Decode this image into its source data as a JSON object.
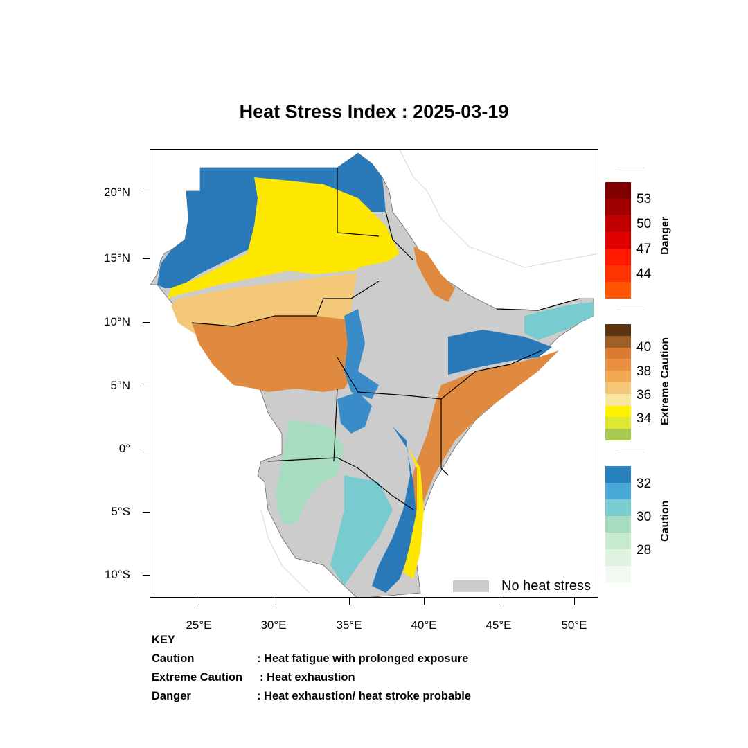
{
  "title": "Heat Stress Index : 2025-03-19",
  "axes": {
    "lat_labels": [
      "20°N",
      "15°N",
      "10°N",
      "5°N",
      "0°",
      "5°S",
      "10°S"
    ],
    "lon_labels": [
      "25°E",
      "30°E",
      "35°E",
      "40°E",
      "45°E",
      "50°E"
    ]
  },
  "map_legend": {
    "no_heat_stress_label": "No heat stress",
    "no_heat_stress_color": "#cccccc"
  },
  "colorbars": {
    "danger": {
      "title": "Danger",
      "colors": [
        "#800000",
        "#a00000",
        "#c00000",
        "#e00000",
        "#ff1a00",
        "#ff3300",
        "#ff5500"
      ],
      "ticks": [
        "53",
        "50",
        "47",
        "44"
      ]
    },
    "extreme_caution": {
      "title": "Extreme Caution",
      "colors": [
        "#5c3310",
        "#9c6028",
        "#d97b30",
        "#e8903f",
        "#f0a850",
        "#f3c878",
        "#f8e6a0",
        "#fff200",
        "#dde830",
        "#a8c850"
      ],
      "ticks": [
        "40",
        "38",
        "36",
        "34"
      ]
    },
    "caution": {
      "title": "Caution",
      "colors": [
        "#2880bf",
        "#48a8d8",
        "#78ccd0",
        "#a8dcc0",
        "#c8eace",
        "#e0f2e0",
        "#f2f9f0"
      ],
      "ticks": [
        "32",
        "30",
        "28"
      ]
    }
  },
  "key": {
    "heading": "KEY",
    "rows": [
      {
        "term": "Caution",
        "desc": ": Heat fatigue with prolonged exposure"
      },
      {
        "term": "Extreme Caution",
        "desc": ": Heat exhaustion"
      },
      {
        "term": "Danger",
        "desc": ": Heat exhaustion/ heat stroke probable"
      }
    ]
  }
}
